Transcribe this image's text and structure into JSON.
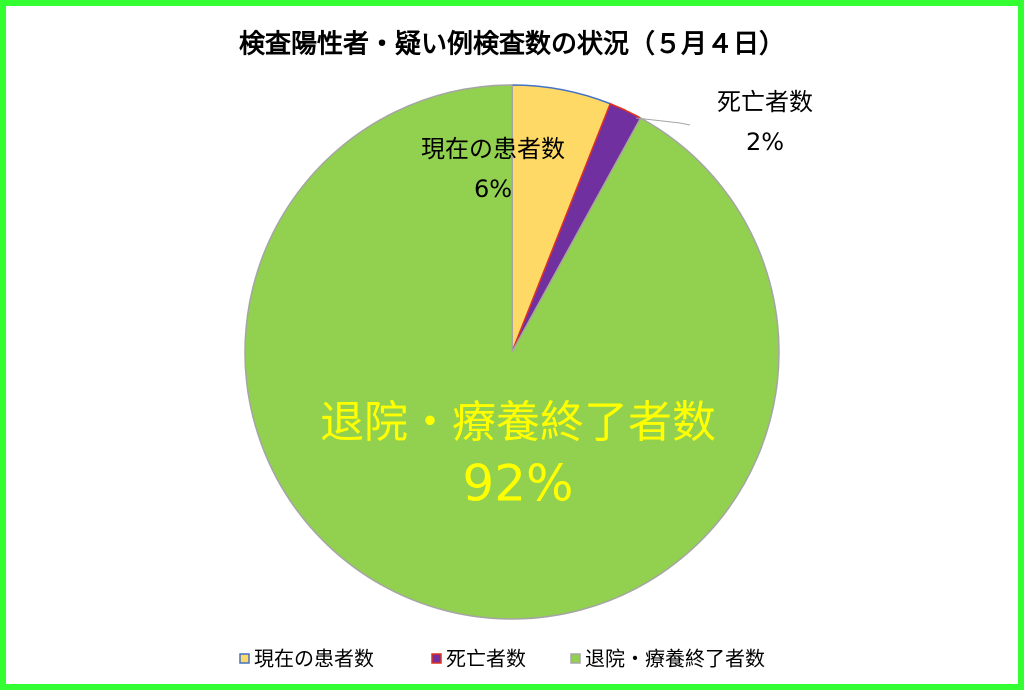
{
  "chart_data": {
    "type": "pie",
    "title": "検査陽性者・疑い例検査数の状況（５月４日）",
    "categories": [
      "現在の患者数",
      "死亡者数",
      "退院・療養終了者数"
    ],
    "values": [
      6,
      2,
      92
    ],
    "value_labels": [
      "6%",
      "2%",
      "92%"
    ],
    "colors": [
      "#ffd966",
      "#7030a0",
      "#92d050"
    ],
    "edgecolors": [
      "#4472c4",
      "#e0301e",
      "#a5a5a5"
    ],
    "legend": "bottom"
  }
}
